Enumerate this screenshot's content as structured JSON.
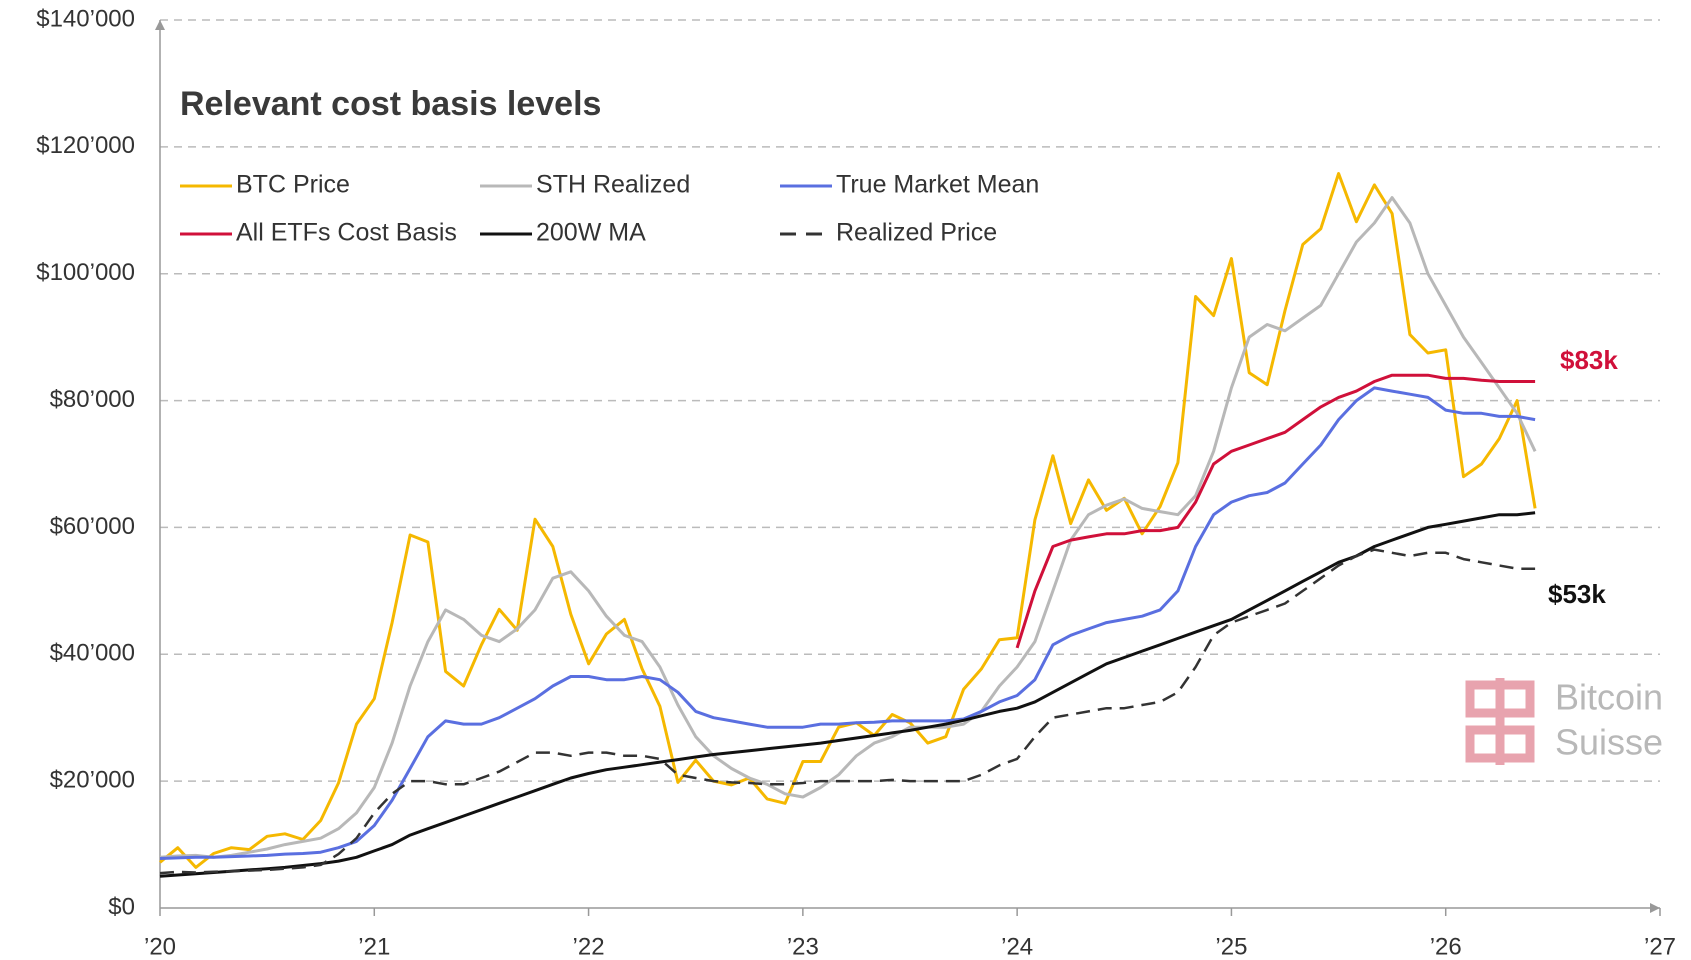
{
  "chart_data": {
    "type": "line",
    "title": "Relevant cost basis levels",
    "x": [
      2020,
      2020.083,
      2020.167,
      2020.25,
      2020.333,
      2020.417,
      2020.5,
      2020.583,
      2020.667,
      2020.75,
      2020.833,
      2020.917,
      2021,
      2021.083,
      2021.167,
      2021.25,
      2021.333,
      2021.417,
      2021.5,
      2021.583,
      2021.667,
      2021.75,
      2021.833,
      2021.917,
      2022,
      2022.083,
      2022.167,
      2022.25,
      2022.333,
      2022.417,
      2022.5,
      2022.583,
      2022.667,
      2022.75,
      2022.833,
      2022.917,
      2023,
      2023.083,
      2023.167,
      2023.25,
      2023.333,
      2023.417,
      2023.5,
      2023.583,
      2023.667,
      2023.75,
      2023.833,
      2023.917,
      2024,
      2024.083,
      2024.167,
      2024.25,
      2024.333,
      2024.417,
      2024.5,
      2024.583,
      2024.667,
      2024.75,
      2024.833,
      2024.917,
      2025,
      2025.083,
      2025.167,
      2025.25,
      2025.333,
      2025.417,
      2025.5,
      2025.583,
      2025.667,
      2025.75,
      2025.833,
      2025.917,
      2026,
      2026.083,
      2026.167,
      2026.25,
      2026.333,
      2026.417
    ],
    "series": [
      {
        "name": "BTC Price",
        "color": "#f5b800",
        "style": "solid",
        "values": [
          7200,
          9500,
          6400,
          8600,
          9500,
          9200,
          11300,
          11700,
          10800,
          13800,
          19700,
          29000,
          33000,
          45000,
          58800,
          57700,
          37300,
          35000,
          41500,
          47100,
          43800,
          61300,
          57000,
          46300,
          38500,
          43200,
          45500,
          37700,
          31800,
          19800,
          23300,
          20000,
          19400,
          20500,
          17200,
          16500,
          23100,
          23100,
          28500,
          29200,
          27200,
          30500,
          29200,
          26000,
          27000,
          34500,
          37700,
          42300,
          42600,
          61200,
          71300,
          60600,
          67500,
          62700,
          64600,
          59000,
          63300,
          70200,
          96400,
          93400,
          102400,
          84400,
          82500,
          94200,
          104600,
          107100,
          115800,
          108200,
          114000,
          109500,
          90400,
          87500,
          88000,
          68000,
          70000,
          74000,
          80000,
          63000
        ]
      },
      {
        "name": "STH Realized",
        "color": "#b8b8b8",
        "style": "solid",
        "values": [
          8000,
          8200,
          8300,
          8000,
          8300,
          8800,
          9300,
          10000,
          10500,
          11000,
          12500,
          15000,
          19000,
          26000,
          35000,
          42000,
          47000,
          45500,
          43000,
          42000,
          44000,
          47000,
          52000,
          53000,
          50000,
          46000,
          43000,
          42000,
          38000,
          32000,
          27000,
          24000,
          22000,
          20500,
          19500,
          18000,
          17500,
          19000,
          21000,
          24000,
          26000,
          27000,
          28500,
          28500,
          28500,
          29000,
          31000,
          35000,
          38000,
          42000,
          50000,
          58000,
          62000,
          63500,
          64500,
          63000,
          62500,
          62000,
          65000,
          72000,
          82000,
          90000,
          92000,
          91000,
          93000,
          95000,
          100000,
          105000,
          108000,
          112000,
          108000,
          100000,
          95000,
          90000,
          86000,
          82000,
          78000,
          72000
        ]
      },
      {
        "name": "True Market Mean",
        "color": "#5a6fe0",
        "style": "solid",
        "values": [
          7800,
          7900,
          8000,
          8000,
          8100,
          8200,
          8300,
          8500,
          8600,
          8800,
          9500,
          10500,
          13000,
          17000,
          22000,
          27000,
          29500,
          29000,
          29000,
          30000,
          31500,
          33000,
          35000,
          36500,
          36500,
          36000,
          36000,
          36500,
          36000,
          34000,
          31000,
          30000,
          29500,
          29000,
          28500,
          28500,
          28500,
          29000,
          29000,
          29200,
          29300,
          29500,
          29500,
          29500,
          29500,
          29800,
          31000,
          32500,
          33500,
          36000,
          41500,
          43000,
          44000,
          45000,
          45500,
          46000,
          47000,
          50000,
          57000,
          62000,
          64000,
          65000,
          65500,
          67000,
          70000,
          73000,
          77000,
          80000,
          82000,
          81500,
          81000,
          80500,
          78500,
          78000,
          78000,
          77500,
          77500,
          77000
        ]
      },
      {
        "name": "All ETFs Cost Basis",
        "color": "#d0103a",
        "style": "solid",
        "values": [
          null,
          null,
          null,
          null,
          null,
          null,
          null,
          null,
          null,
          null,
          null,
          null,
          null,
          null,
          null,
          null,
          null,
          null,
          null,
          null,
          null,
          null,
          null,
          null,
          null,
          null,
          null,
          null,
          null,
          null,
          null,
          null,
          null,
          null,
          null,
          null,
          null,
          null,
          null,
          null,
          null,
          null,
          null,
          null,
          null,
          null,
          null,
          null,
          41000,
          50000,
          57000,
          58000,
          58500,
          59000,
          59000,
          59500,
          59500,
          60000,
          64000,
          70000,
          72000,
          73000,
          74000,
          75000,
          77000,
          79000,
          80500,
          81500,
          83000,
          84000,
          84000,
          84000,
          83500,
          83500,
          83200,
          83000,
          83000,
          83000
        ]
      },
      {
        "name": "200W MA",
        "color": "#111111",
        "style": "solid",
        "values": [
          5000,
          5200,
          5400,
          5600,
          5800,
          6000,
          6200,
          6400,
          6700,
          7000,
          7400,
          8000,
          9000,
          10000,
          11500,
          12500,
          13500,
          14500,
          15500,
          16500,
          17500,
          18500,
          19500,
          20500,
          21200,
          21800,
          22200,
          22600,
          23000,
          23400,
          23800,
          24200,
          24500,
          24800,
          25100,
          25400,
          25700,
          26000,
          26400,
          26800,
          27200,
          27600,
          28000,
          28500,
          29000,
          29600,
          30300,
          31000,
          31500,
          32500,
          34000,
          35500,
          37000,
          38500,
          39500,
          40500,
          41500,
          42500,
          43500,
          44500,
          45500,
          47000,
          48500,
          50000,
          51500,
          53000,
          54500,
          55500,
          57000,
          58000,
          59000,
          60000,
          60500,
          61000,
          61500,
          62000,
          62000,
          62300
        ]
      },
      {
        "name": "Realized Price",
        "color": "#333333",
        "style": "dashed",
        "values": [
          5500,
          5700,
          5600,
          5700,
          5800,
          5900,
          6000,
          6200,
          6400,
          6800,
          8500,
          11000,
          15000,
          18000,
          20000,
          20000,
          19500,
          19500,
          20500,
          21500,
          23000,
          24500,
          24500,
          24000,
          24500,
          24500,
          24000,
          24000,
          23500,
          21000,
          20500,
          20000,
          19800,
          19700,
          19500,
          19500,
          19700,
          20000,
          20000,
          20000,
          20000,
          20200,
          20000,
          20000,
          20000,
          20000,
          21000,
          22500,
          23500,
          27000,
          30000,
          30500,
          31000,
          31500,
          31500,
          32000,
          32500,
          34000,
          38000,
          43000,
          45000,
          46000,
          47000,
          48000,
          50000,
          52000,
          54000,
          55500,
          56500,
          56000,
          55500,
          56000,
          56000,
          55000,
          54500,
          54000,
          53500,
          53500
        ]
      }
    ],
    "annotations": [
      {
        "text": "$83k",
        "color": "#d0103a"
      },
      {
        "text": "$53k",
        "color": "#111111"
      }
    ],
    "watermark": [
      "Bitcoin",
      "Suisse"
    ],
    "xlim": [
      2020,
      2027
    ],
    "xticks": [
      {
        "value": 2020,
        "label": "’20"
      },
      {
        "value": 2021,
        "label": "’21"
      },
      {
        "value": 2022,
        "label": "’22"
      },
      {
        "value": 2023,
        "label": "’23"
      },
      {
        "value": 2024,
        "label": "’24"
      },
      {
        "value": 2025,
        "label": "’25"
      },
      {
        "value": 2026,
        "label": "’26"
      },
      {
        "value": 2027,
        "label": "’27"
      }
    ],
    "ylim": [
      0,
      140000
    ],
    "yticks": [
      {
        "value": 0,
        "label": "$0"
      },
      {
        "value": 20000,
        "label": "$20’000"
      },
      {
        "value": 40000,
        "label": "$40’000"
      },
      {
        "value": 60000,
        "label": "$60’000"
      },
      {
        "value": 80000,
        "label": "$80’000"
      },
      {
        "value": 100000,
        "label": "$100’000"
      },
      {
        "value": 120000,
        "label": "$120’000"
      },
      {
        "value": 140000,
        "label": "$140’000"
      }
    ],
    "grid": true
  }
}
